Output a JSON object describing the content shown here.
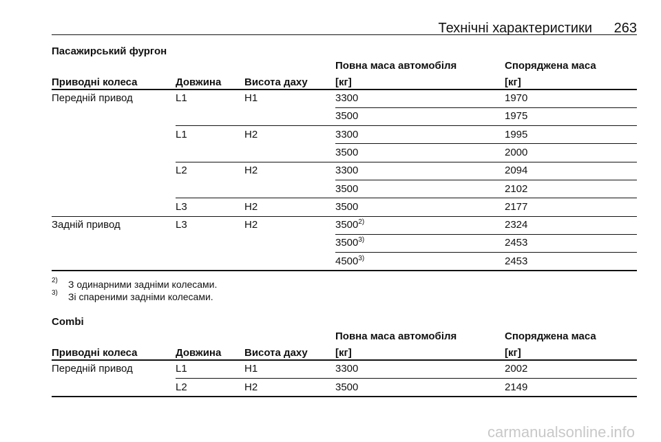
{
  "header": {
    "title": "Технічні характеристики",
    "page": "263"
  },
  "sections": [
    {
      "title": "Пасажирський фургон",
      "columns": [
        [
          "Приводні колеса"
        ],
        [
          "Довжина"
        ],
        [
          "Висота даху"
        ],
        [
          "Повна маса автомобіля",
          "[кг]"
        ],
        [
          "Споряджена маса",
          "[кг]"
        ]
      ],
      "rows": [
        [
          "Передній привод",
          "L1",
          "H1",
          "3300",
          "1970"
        ],
        [
          null,
          null,
          null,
          "3500",
          "1975"
        ],
        [
          null,
          "L1",
          "H2",
          "3300",
          "1995"
        ],
        [
          null,
          null,
          null,
          "3500",
          "2000"
        ],
        [
          null,
          "L2",
          "H2",
          "3300",
          "2094"
        ],
        [
          null,
          null,
          null,
          "3500",
          "2102"
        ],
        [
          null,
          "L3",
          "H2",
          "3500",
          "2177"
        ],
        [
          "Задній привод",
          "L3",
          "H2",
          {
            "text": "3500",
            "note": "2)"
          },
          "2324"
        ],
        [
          null,
          null,
          null,
          {
            "text": "3500",
            "note": "3)"
          },
          "2453"
        ],
        [
          null,
          null,
          null,
          {
            "text": "4500",
            "note": "3)"
          },
          "2453"
        ]
      ],
      "footnotes": [
        {
          "mark": "2)",
          "text": "З одинарними задніми колесами."
        },
        {
          "mark": "3)",
          "text": "Зі спареними задніми колесами."
        }
      ]
    },
    {
      "title": "Combi",
      "columns": [
        [
          "Приводні колеса"
        ],
        [
          "Довжина"
        ],
        [
          "Висота даху"
        ],
        [
          "Повна маса автомобіля",
          "[кг]"
        ],
        [
          "Споряджена маса",
          "[кг]"
        ]
      ],
      "rows": [
        [
          "Передній привод",
          "L1",
          "H1",
          "3300",
          "2002"
        ],
        [
          null,
          "L2",
          "H2",
          "3500",
          "2149"
        ]
      ]
    }
  ],
  "watermark": "carmanualsonline.info"
}
